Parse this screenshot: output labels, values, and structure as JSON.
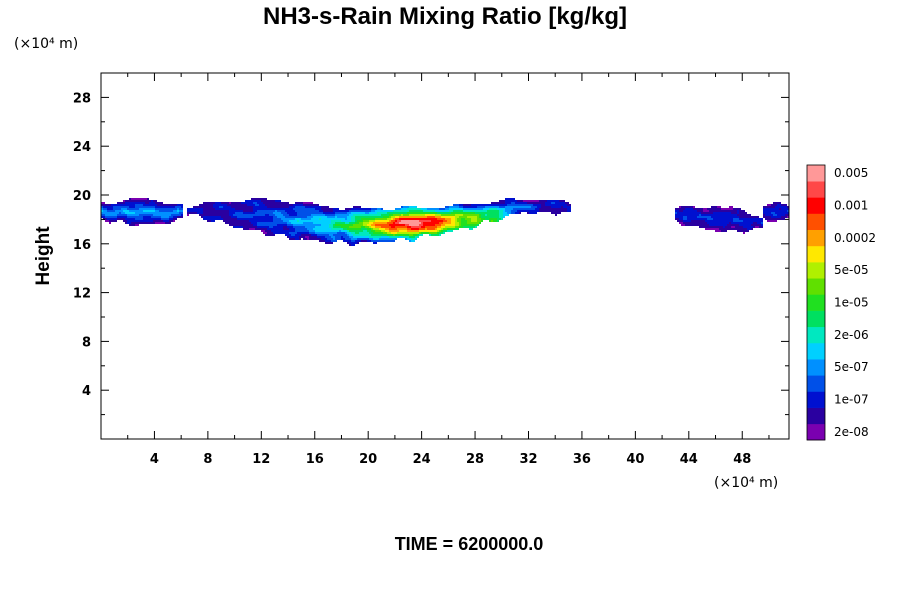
{
  "chart_data": {
    "type": "contour",
    "title": "NH3-s-Rain Mixing Ratio [kg/kg]",
    "xlabel": "",
    "ylabel": "Height",
    "x_unit": "(×10⁴ m)",
    "y_unit": "(×10⁴ m)",
    "xlim": [
      0,
      51.5
    ],
    "ylim": [
      0,
      30
    ],
    "x_ticks": [
      4,
      8,
      12,
      16,
      20,
      24,
      28,
      32,
      36,
      40,
      44,
      48
    ],
    "y_ticks": [
      4,
      8,
      12,
      16,
      20,
      24,
      28
    ],
    "x_tick_labels": [
      "4",
      "8",
      "12",
      "16",
      "20",
      "24",
      "28",
      "32",
      "36",
      "40",
      "44",
      "48"
    ],
    "y_tick_labels": [
      "4",
      "8",
      "12",
      "16",
      "20",
      "24",
      "28"
    ],
    "footer": "TIME = 6200000.0",
    "colorbar": {
      "colors": [
        "#7a00b0",
        "#2a00a0",
        "#0010d0",
        "#0050e8",
        "#0090ff",
        "#00d0ff",
        "#00e8c0",
        "#00e060",
        "#20e020",
        "#60e000",
        "#b0f000",
        "#ffe800",
        "#ffa000",
        "#ff5000",
        "#ff0000",
        "#ff4848",
        "#ff9898"
      ],
      "labels": [
        "2e-08",
        "1e-07",
        "5e-07",
        "2e-06",
        "1e-05",
        "5e-05",
        "0.0002",
        "0.001",
        "0.005"
      ]
    },
    "regions": [
      {
        "name": "left-fragment",
        "x_range": [
          0,
          6.2
        ],
        "z_range": [
          17.5,
          19.7
        ],
        "peak_level": 5
      },
      {
        "name": "main-cloud",
        "x_range": [
          6.5,
          35.2
        ],
        "z_range": [
          15.6,
          19.8
        ],
        "peak_level": 16
      },
      {
        "name": "right-fragment-a",
        "x_range": [
          43,
          49.5
        ],
        "z_range": [
          17.3,
          19.5
        ],
        "peak_level": 3
      },
      {
        "name": "right-fragment-b",
        "x_range": [
          49.5,
          51.5
        ],
        "z_range": [
          17.8,
          19.3
        ],
        "peak_level": 3
      }
    ]
  }
}
